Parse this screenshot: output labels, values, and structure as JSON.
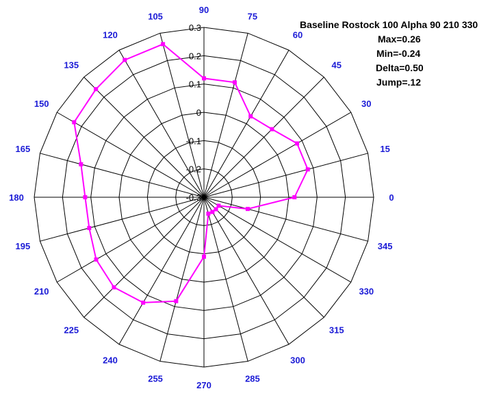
{
  "chart_data": {
    "type": "line",
    "polar": true,
    "title": "Baseline Rostock 100 Alpha 90 210 330",
    "stats": [
      "Max=0.26",
      "Min=-0.24",
      "Delta=0.50",
      "Jump=.12"
    ],
    "angle_ticks": [
      "0",
      "15",
      "30",
      "45",
      "60",
      "75",
      "90",
      "105",
      "120",
      "135",
      "150",
      "165",
      "180",
      "195",
      "210",
      "225",
      "240",
      "255",
      "270",
      "285",
      "300",
      "315",
      "330",
      "345"
    ],
    "radial_ticks": [
      "-0.3",
      "-0.2",
      "-0.1",
      "0",
      "0.1",
      "0.2",
      "0.3"
    ],
    "rlim": [
      -0.3,
      0.3
    ],
    "grid": true,
    "line_color": "#ff00ff",
    "grid_color": "#000000",
    "label_color": "#1a1ad6",
    "series": [
      {
        "theta": [
          0,
          15,
          30,
          45,
          60,
          75,
          90,
          105,
          120,
          135,
          150,
          165,
          180,
          195,
          210,
          225,
          240,
          255,
          270,
          285,
          300,
          315,
          330,
          345
        ],
        "r": [
          0.02,
          0.08,
          0.08,
          0.04,
          0.03,
          0.12,
          0.12,
          0.26,
          0.26,
          0.24,
          0.23,
          0.15,
          0.12,
          0.12,
          0.14,
          0.15,
          0.13,
          0.08,
          -0.09,
          -0.24,
          -0.24,
          -0.24,
          -0.24,
          -0.14
        ]
      }
    ]
  }
}
